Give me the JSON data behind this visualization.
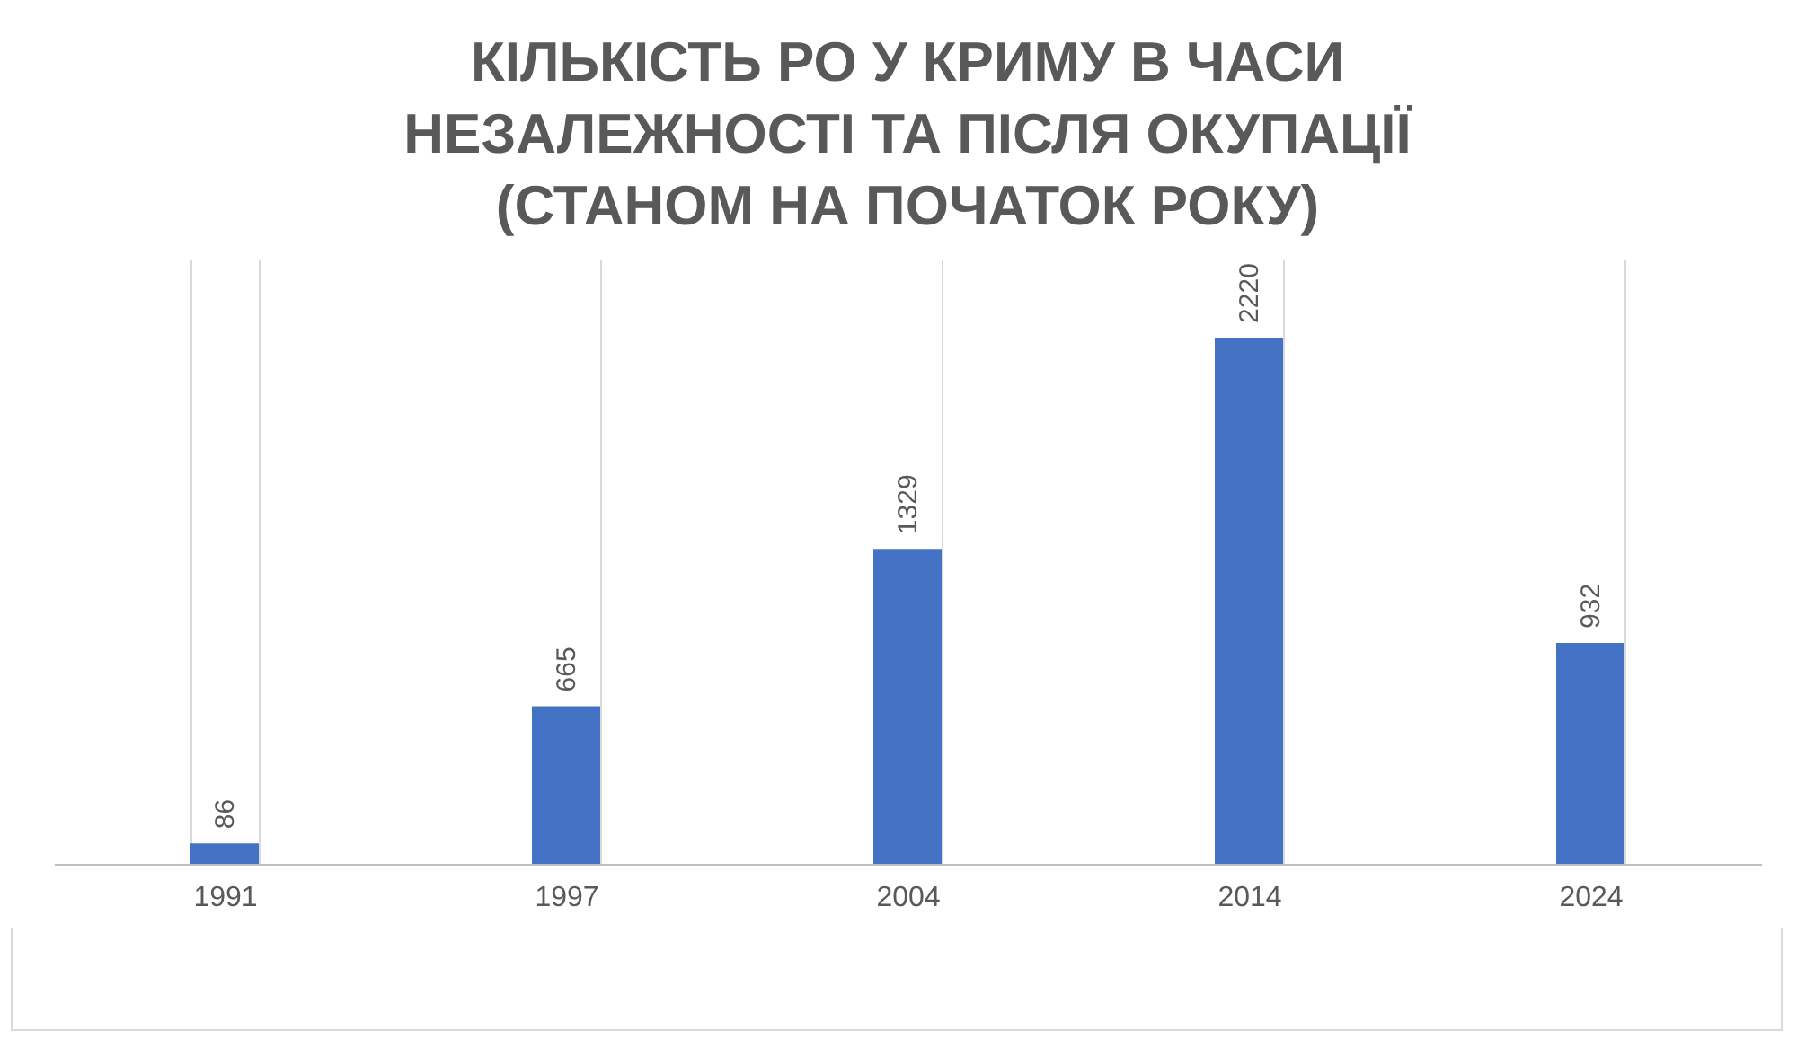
{
  "chart_data": {
    "type": "bar",
    "title": "КІЛЬКІСТЬ РО У КРИМУ В ЧАСИ\nНЕЗАЛЕЖНОСТІ ТА ПІСЛЯ ОКУПАЦІЇ\n(СТАНОМ НА ПОЧАТОК РОКУ)",
    "categories": [
      "1991",
      "1997",
      "2004",
      "2014",
      "2024"
    ],
    "values": [
      86,
      665,
      1329,
      2220,
      932
    ],
    "color": "#4472c4",
    "data_labels": true,
    "grid": "x",
    "tick_labels": "x"
  }
}
